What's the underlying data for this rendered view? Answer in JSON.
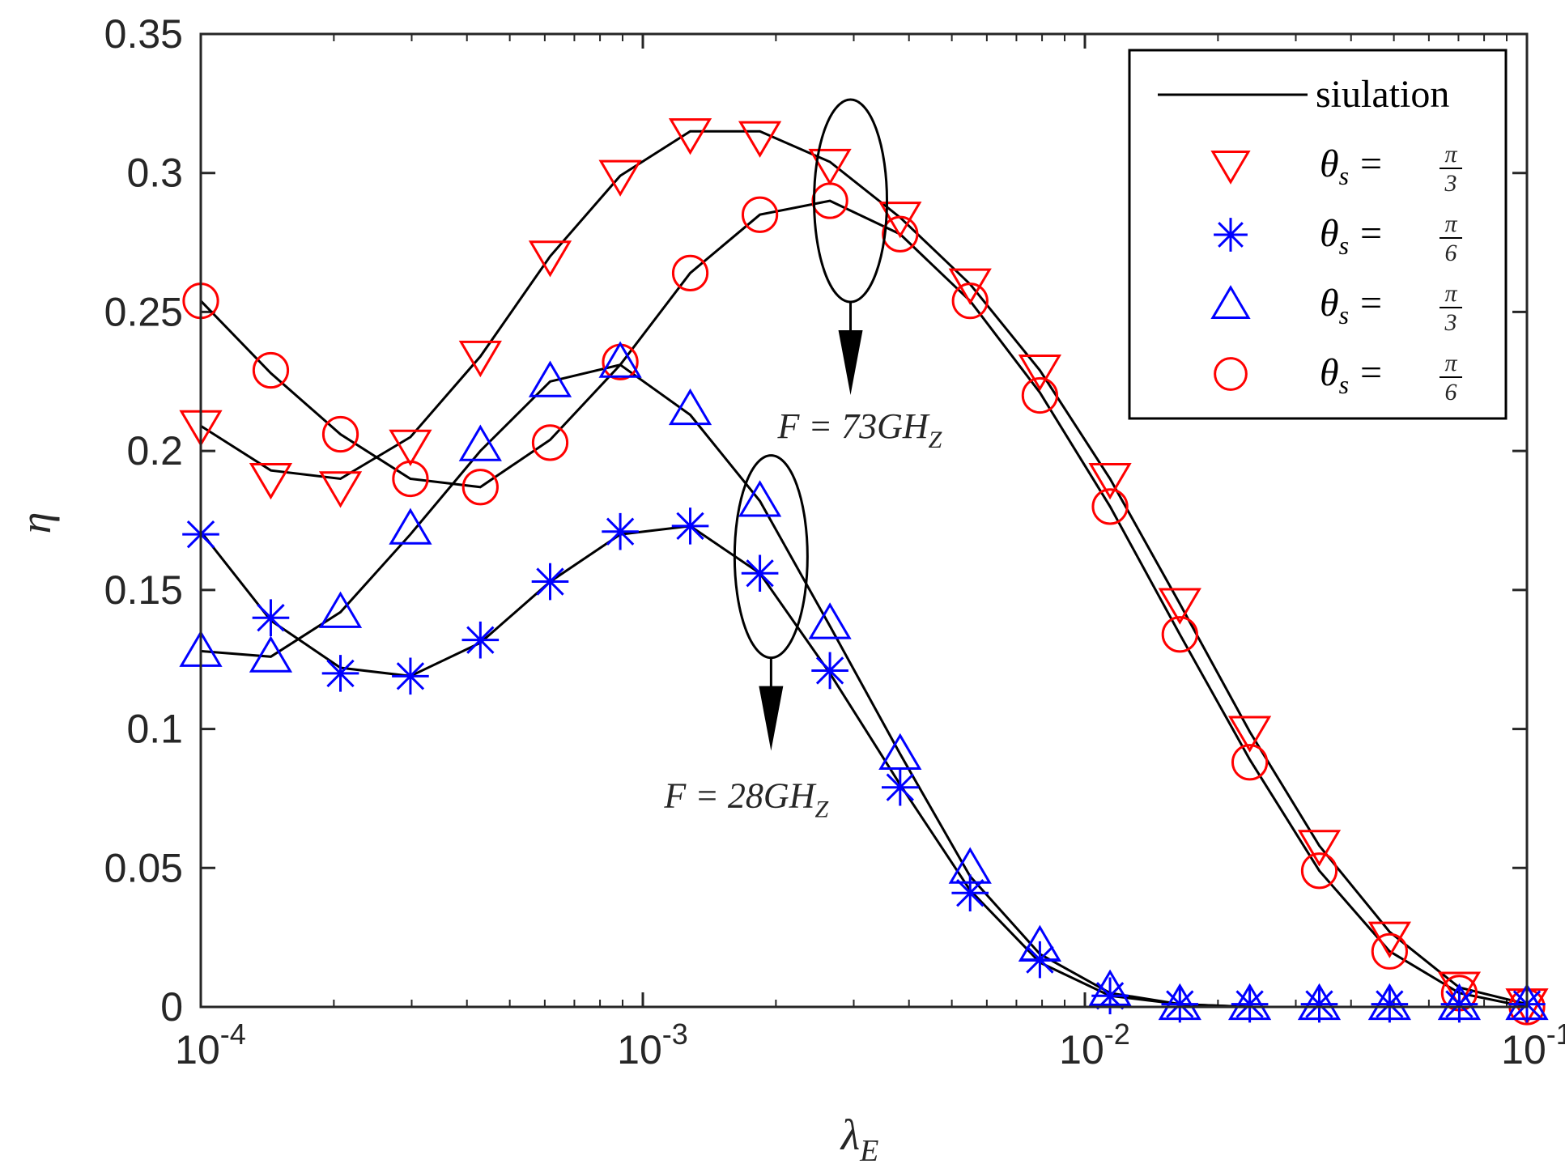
{
  "chart_data": {
    "type": "line",
    "xscale": "log",
    "xlim": [
      0.0001,
      0.1
    ],
    "ylim": [
      0,
      0.35
    ],
    "xlabel_base": "λ",
    "xlabel_sub": "E",
    "ylabel": "η",
    "yticks": [
      "0",
      "0.05",
      "0.1",
      "0.15",
      "0.2",
      "0.25",
      "0.3",
      "0.35"
    ],
    "xticks": [
      {
        "base": "10",
        "exp": "-4",
        "value": 0.0001
      },
      {
        "base": "10",
        "exp": "-3",
        "value": 0.001
      },
      {
        "base": "10",
        "exp": "-2",
        "value": 0.01
      },
      {
        "base": "10",
        "exp": "-1",
        "value": 0.1
      }
    ],
    "x": [
      0.0001,
      0.000144,
      0.000207,
      0.000298,
      0.000429,
      0.000617,
      0.000889,
      0.00128,
      0.00184,
      0.00265,
      0.00382,
      0.0055,
      0.00791,
      0.0114,
      0.0164,
      0.0236,
      0.0339,
      0.0489,
      0.0703,
      0.1
    ],
    "series": [
      {
        "name": "θs = π/3",
        "freq": "73",
        "marker": "triangle-down",
        "color": "#ff0000",
        "sim": [
          0.209,
          0.193,
          0.19,
          0.205,
          0.234,
          0.27,
          0.299,
          0.315,
          0.315,
          0.304,
          0.284,
          0.26,
          0.229,
          0.19,
          0.145,
          0.099,
          0.058,
          0.027,
          0.007,
          0.001
        ],
        "values": [
          0.209,
          0.19,
          0.187,
          0.202,
          0.234,
          0.27,
          0.299,
          0.314,
          0.313,
          0.303,
          0.284,
          0.26,
          0.229,
          0.19,
          0.145,
          0.099,
          0.058,
          0.025,
          0.007,
          0.001
        ]
      },
      {
        "name": "θs = π/6",
        "freq": "73",
        "marker": "circle",
        "color": "#ff0000",
        "sim": [
          0.254,
          0.228,
          0.206,
          0.19,
          0.187,
          0.204,
          0.231,
          0.264,
          0.285,
          0.29,
          0.278,
          0.254,
          0.221,
          0.18,
          0.134,
          0.089,
          0.049,
          0.02,
          0.005,
          0.0
        ],
        "values": [
          0.254,
          0.229,
          0.206,
          0.19,
          0.187,
          0.203,
          0.232,
          0.264,
          0.285,
          0.29,
          0.278,
          0.254,
          0.22,
          0.18,
          0.134,
          0.088,
          0.049,
          0.02,
          0.005,
          0.0
        ]
      },
      {
        "name": "θs = π/6",
        "freq": "28",
        "marker": "star",
        "color": "#0000ff",
        "sim": [
          0.171,
          0.139,
          0.122,
          0.119,
          0.131,
          0.153,
          0.17,
          0.173,
          0.156,
          0.12,
          0.08,
          0.042,
          0.016,
          0.004,
          0.001,
          0.0,
          0.0,
          0.0,
          0.0,
          0.0
        ],
        "values": [
          0.17,
          0.14,
          0.12,
          0.119,
          0.132,
          0.153,
          0.171,
          0.173,
          0.156,
          0.121,
          0.079,
          0.041,
          0.017,
          0.004,
          0.001,
          0.001,
          0.001,
          0.001,
          0.001,
          0.001
        ]
      },
      {
        "name": "θs = π/3",
        "freq": "28",
        "marker": "triangle-up",
        "color": "#0000ff",
        "sim": [
          0.128,
          0.126,
          0.142,
          0.17,
          0.2,
          0.225,
          0.231,
          0.213,
          0.182,
          0.137,
          0.091,
          0.047,
          0.019,
          0.005,
          0.001,
          0.0,
          0.0,
          0.0,
          0.0,
          0.0
        ],
        "values": [
          0.128,
          0.126,
          0.142,
          0.172,
          0.202,
          0.225,
          0.232,
          0.215,
          0.182,
          0.138,
          0.091,
          0.05,
          0.022,
          0.006,
          0.001,
          0.001,
          0.001,
          0.001,
          0.001,
          0.001
        ]
      }
    ],
    "legend": {
      "position": "top-right",
      "sim_label": "siulation",
      "entries": [
        {
          "marker": "triangle-down",
          "color": "#ff0000",
          "pre": "θ",
          "sub": "s",
          "eq": "=",
          "num": "π",
          "den": "3"
        },
        {
          "marker": "star",
          "color": "#0000ff",
          "pre": "θ",
          "sub": "s",
          "eq": "=",
          "num": "π",
          "den": "6"
        },
        {
          "marker": "triangle-up",
          "color": "#0000ff",
          "pre": "θ",
          "sub": "s",
          "eq": "=",
          "num": "π",
          "den": "3"
        },
        {
          "marker": "circle",
          "color": "#ff0000",
          "pre": "θ",
          "sub": "s",
          "eq": "=",
          "num": "π",
          "den": "6"
        }
      ]
    },
    "annotations": [
      {
        "label_pre": "F = 73GH",
        "label_sub": "Z",
        "target": "73 GHz curves",
        "ellipse_center": [
          0.00295,
          0.29
        ]
      },
      {
        "label_pre": "F = 28GH",
        "label_sub": "Z",
        "target": "28 GHz curves",
        "ellipse_center": [
          0.00195,
          0.162
        ]
      }
    ]
  }
}
